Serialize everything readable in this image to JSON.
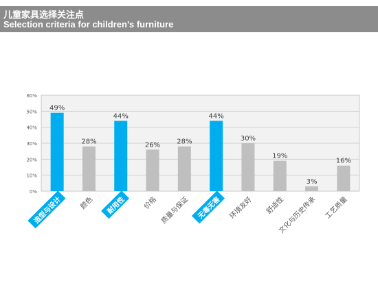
{
  "header": {
    "title_cn": "儿童家具选择关注点",
    "title_en": "Selection criteria for children’s furniture"
  },
  "chart_data": {
    "type": "bar",
    "categories": [
      "造型与设计",
      "颜色",
      "耐用性",
      "价格",
      "质量与保证",
      "无毒无害",
      "环境友好",
      "舒适性",
      "文化与历史传承",
      "工艺质量"
    ],
    "values": [
      49,
      28,
      44,
      26,
      28,
      44,
      30,
      19,
      3,
      16
    ],
    "value_labels": [
      "49%",
      "28%",
      "44%",
      "26%",
      "28%",
      "44%",
      "30%",
      "19%",
      "3%",
      "16%"
    ],
    "highlighted": [
      true,
      false,
      true,
      false,
      false,
      true,
      false,
      false,
      false,
      false
    ],
    "ylim": [
      0,
      60
    ],
    "yticks": [
      0,
      10,
      20,
      30,
      40,
      50,
      60
    ],
    "ytick_labels": [
      "0%",
      "10%",
      "20%",
      "30%",
      "40%",
      "50%",
      "60%"
    ],
    "grid": true,
    "colors": {
      "highlight": "#00aeef",
      "normal": "#bfbfbf",
      "grid": "#d0d0d0",
      "plot_bg": "#f2f2f2",
      "highlight_label_text": "#ffffff",
      "normal_label_text": "#595959"
    }
  }
}
